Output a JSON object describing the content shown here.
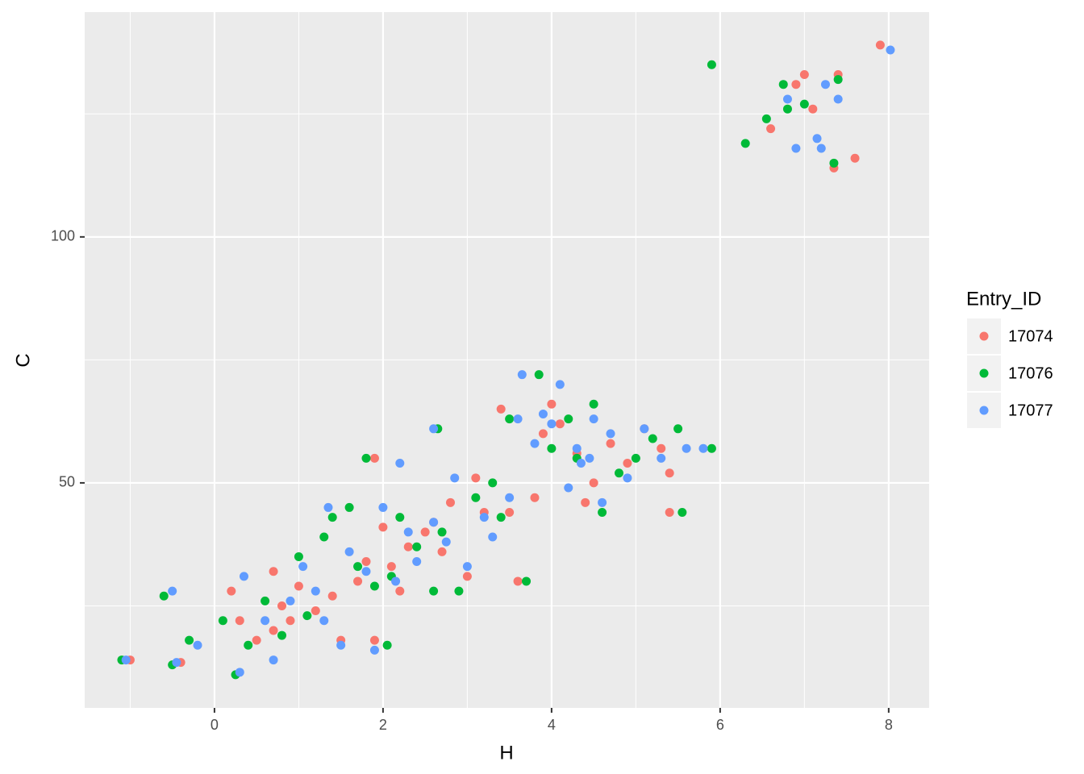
{
  "chart_data": {
    "type": "scatter",
    "x_label": "H",
    "y_label": "C",
    "legend_title": "Entry_ID",
    "legend_position": "right",
    "grid": true,
    "xlim": [
      -1.54,
      8.48
    ],
    "ylim": [
      4.26,
      145.7
    ],
    "xticks": [
      0,
      2,
      4,
      6,
      8
    ],
    "yticks": [
      50,
      100
    ],
    "x_minor_ticks": [
      -1,
      1,
      3,
      5,
      7
    ],
    "y_minor_ticks": [
      25,
      75,
      125
    ],
    "series": [
      {
        "name": "17074",
        "color": "#F8766D",
        "x": [
          -1.0,
          -0.4,
          0.2,
          0.3,
          0.5,
          0.7,
          0.8,
          0.9,
          1.0,
          1.2,
          1.4,
          1.5,
          1.7,
          1.8,
          1.9,
          2.0,
          2.1,
          2.2,
          2.3,
          2.5,
          2.6,
          2.7,
          2.8,
          3.0,
          3.1,
          3.2,
          3.4,
          3.5,
          3.6,
          3.8,
          3.9,
          4.0,
          4.1,
          4.3,
          4.4,
          4.5,
          4.7,
          4.9,
          5.1,
          5.3,
          5.4,
          5.4,
          1.9,
          6.6,
          6.9,
          7.0,
          7.1,
          7.4,
          7.6,
          7.9,
          7.35,
          0.7
        ],
        "y": [
          14,
          13.5,
          28,
          22,
          18,
          32,
          25,
          22,
          29,
          24,
          27,
          18,
          30,
          34,
          18,
          41,
          33,
          28,
          37,
          40,
          42,
          36,
          46,
          31,
          51,
          44,
          65,
          44,
          30,
          47,
          60,
          66,
          62,
          56,
          46,
          50,
          58,
          54,
          61,
          57,
          52,
          44,
          55,
          122,
          131,
          133,
          126,
          133,
          116,
          139,
          114,
          20
        ]
      },
      {
        "name": "17076",
        "color": "#00BA38",
        "x": [
          -1.1,
          -0.5,
          -0.6,
          -0.3,
          0.1,
          0.25,
          0.4,
          0.6,
          0.8,
          1.0,
          1.1,
          1.3,
          1.4,
          1.6,
          1.7,
          1.9,
          2.1,
          2.2,
          2.4,
          2.6,
          2.7,
          2.9,
          3.1,
          3.3,
          3.4,
          3.5,
          3.7,
          3.85,
          4.0,
          4.2,
          4.3,
          4.5,
          4.6,
          4.8,
          5.0,
          5.2,
          5.5,
          5.55,
          5.9,
          1.8,
          2.05,
          2.65,
          5.9,
          6.3,
          6.55,
          6.8,
          7.0,
          6.75,
          7.4,
          7.35
        ],
        "y": [
          14,
          13,
          27,
          18,
          22,
          11,
          17,
          26,
          19,
          35,
          23,
          39,
          43,
          45,
          33,
          29,
          31,
          43,
          37,
          28,
          40,
          28,
          47,
          50,
          43,
          63,
          30,
          72,
          57,
          63,
          55,
          66,
          44,
          52,
          55,
          59,
          61,
          44,
          57,
          55,
          17,
          61,
          135,
          119,
          124,
          126,
          127,
          131,
          132,
          115
        ]
      },
      {
        "name": "17077",
        "color": "#619CFF",
        "x": [
          -1.05,
          -0.45,
          -0.5,
          -0.2,
          0.3,
          0.35,
          0.6,
          0.7,
          0.9,
          1.05,
          1.2,
          1.3,
          1.35,
          1.5,
          1.6,
          1.8,
          1.9,
          2.0,
          2.15,
          2.3,
          2.4,
          2.6,
          2.75,
          2.85,
          3.0,
          3.2,
          3.3,
          3.5,
          3.6,
          3.65,
          3.8,
          3.9,
          4.0,
          4.1,
          4.2,
          4.3,
          4.35,
          4.45,
          4.5,
          4.7,
          4.9,
          5.1,
          5.3,
          5.6,
          5.8,
          4.6,
          2.2,
          2.6,
          6.8,
          6.9,
          7.2,
          7.25,
          7.4,
          8.02,
          7.15
        ],
        "y": [
          14,
          13.5,
          28,
          17,
          11.5,
          31,
          22,
          14,
          26,
          33,
          28,
          22,
          45,
          17,
          36,
          32,
          16,
          45,
          30,
          40,
          34,
          42,
          38,
          51,
          33,
          43,
          39,
          47,
          63,
          72,
          58,
          64,
          62,
          70,
          49,
          57,
          54,
          55,
          63,
          60,
          51,
          61,
          55,
          57,
          57,
          46,
          54,
          61,
          128,
          118,
          118,
          131,
          128,
          138,
          120
        ]
      }
    ]
  }
}
